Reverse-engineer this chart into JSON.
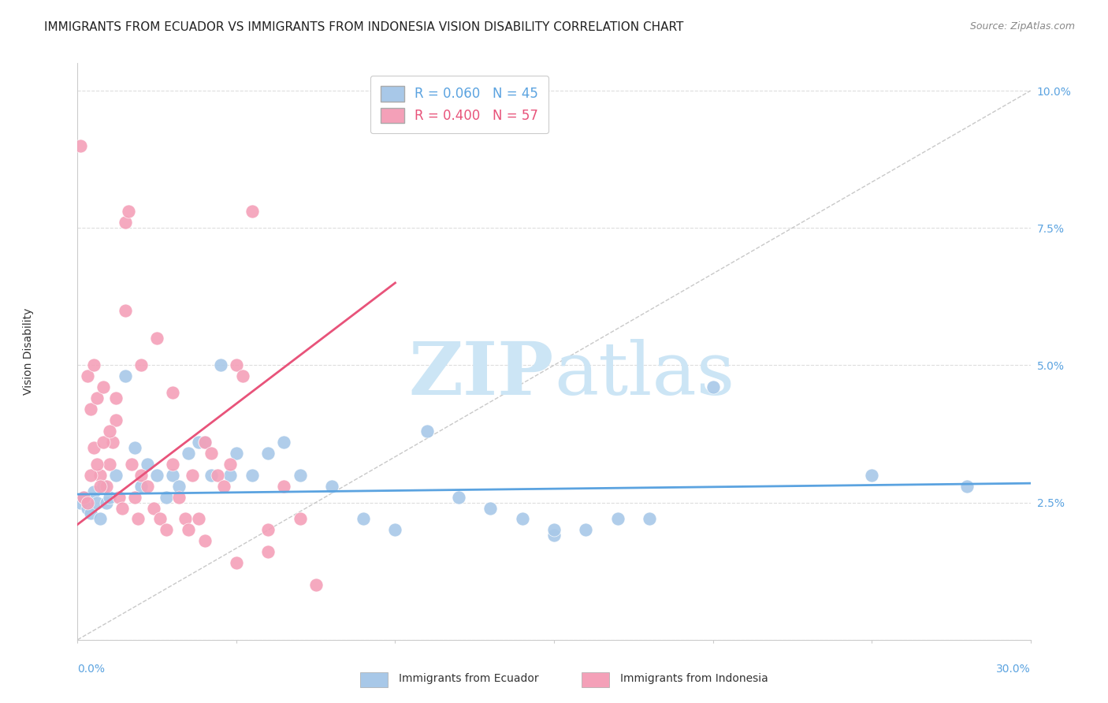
{
  "title": "IMMIGRANTS FROM ECUADOR VS IMMIGRANTS FROM INDONESIA VISION DISABILITY CORRELATION CHART",
  "source": "Source: ZipAtlas.com",
  "ylabel": "Vision Disability",
  "xlim": [
    0.0,
    0.3
  ],
  "ylim": [
    0.0,
    0.105
  ],
  "ecuador_color": "#a8c8e8",
  "indonesia_color": "#f4a0b8",
  "ecuador_line_color": "#5ba3e0",
  "indonesia_line_color": "#e8537a",
  "diagonal_color": "#bbbbbb",
  "R_ecuador": 0.06,
  "N_ecuador": 45,
  "R_indonesia": 0.4,
  "N_indonesia": 57,
  "ecuador_line_x": [
    0.0,
    0.3
  ],
  "ecuador_line_y": [
    0.0265,
    0.0285
  ],
  "indonesia_line_x": [
    0.0,
    0.1
  ],
  "indonesia_line_y": [
    0.021,
    0.065
  ],
  "ecuador_scatter_x": [
    0.001,
    0.002,
    0.003,
    0.004,
    0.005,
    0.006,
    0.007,
    0.008,
    0.009,
    0.01,
    0.012,
    0.015,
    0.018,
    0.02,
    0.022,
    0.025,
    0.028,
    0.03,
    0.032,
    0.035,
    0.038,
    0.04,
    0.042,
    0.045,
    0.048,
    0.05,
    0.055,
    0.06,
    0.065,
    0.07,
    0.08,
    0.09,
    0.1,
    0.11,
    0.12,
    0.13,
    0.15,
    0.16,
    0.18,
    0.2,
    0.25,
    0.28,
    0.15,
    0.17,
    0.14
  ],
  "ecuador_scatter_y": [
    0.025,
    0.026,
    0.024,
    0.023,
    0.027,
    0.025,
    0.022,
    0.028,
    0.025,
    0.026,
    0.03,
    0.048,
    0.035,
    0.028,
    0.032,
    0.03,
    0.026,
    0.03,
    0.028,
    0.034,
    0.036,
    0.036,
    0.03,
    0.05,
    0.03,
    0.034,
    0.03,
    0.034,
    0.036,
    0.03,
    0.028,
    0.022,
    0.02,
    0.038,
    0.026,
    0.024,
    0.019,
    0.02,
    0.022,
    0.046,
    0.03,
    0.028,
    0.02,
    0.022,
    0.022
  ],
  "indonesia_scatter_x": [
    0.001,
    0.002,
    0.003,
    0.004,
    0.005,
    0.006,
    0.007,
    0.008,
    0.009,
    0.01,
    0.011,
    0.012,
    0.013,
    0.014,
    0.015,
    0.016,
    0.017,
    0.018,
    0.019,
    0.02,
    0.022,
    0.024,
    0.026,
    0.028,
    0.03,
    0.032,
    0.034,
    0.036,
    0.038,
    0.04,
    0.042,
    0.044,
    0.046,
    0.048,
    0.05,
    0.052,
    0.055,
    0.06,
    0.065,
    0.07,
    0.003,
    0.004,
    0.005,
    0.006,
    0.007,
    0.008,
    0.01,
    0.012,
    0.015,
    0.02,
    0.025,
    0.03,
    0.035,
    0.04,
    0.05,
    0.06,
    0.075
  ],
  "indonesia_scatter_y": [
    0.09,
    0.026,
    0.048,
    0.042,
    0.05,
    0.044,
    0.03,
    0.046,
    0.028,
    0.032,
    0.036,
    0.04,
    0.026,
    0.024,
    0.076,
    0.078,
    0.032,
    0.026,
    0.022,
    0.03,
    0.028,
    0.024,
    0.022,
    0.02,
    0.032,
    0.026,
    0.022,
    0.03,
    0.022,
    0.036,
    0.034,
    0.03,
    0.028,
    0.032,
    0.05,
    0.048,
    0.078,
    0.02,
    0.028,
    0.022,
    0.025,
    0.03,
    0.035,
    0.032,
    0.028,
    0.036,
    0.038,
    0.044,
    0.06,
    0.05,
    0.055,
    0.045,
    0.02,
    0.018,
    0.014,
    0.016,
    0.01
  ],
  "background_color": "#ffffff",
  "grid_color": "#dddddd",
  "watermark_color": "#cce5f5",
  "title_fontsize": 11,
  "axis_label_fontsize": 10,
  "tick_fontsize": 10,
  "legend_fontsize": 12
}
